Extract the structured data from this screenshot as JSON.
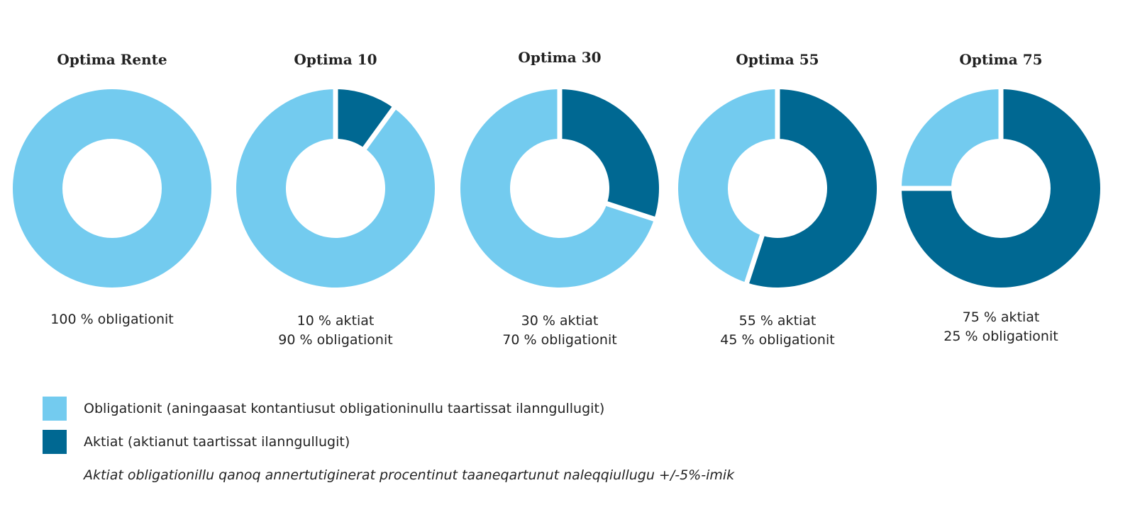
{
  "colors": {
    "obligationit": "#73CBEF",
    "aktiat": "#006892",
    "separator": "#ffffff"
  },
  "chart_data": [
    {
      "type": "pie",
      "title": "Optima Rente",
      "series": [
        {
          "name": "Aktiat",
          "value": 0
        },
        {
          "name": "Obligationit",
          "value": 100
        }
      ],
      "caption": [
        "100 % obligationit"
      ]
    },
    {
      "type": "pie",
      "title": "Optima 10",
      "series": [
        {
          "name": "Aktiat",
          "value": 10
        },
        {
          "name": "Obligationit",
          "value": 90
        }
      ],
      "caption": [
        "10 % aktiat",
        "90 % obligationit"
      ]
    },
    {
      "type": "pie",
      "title": "Optima 30",
      "series": [
        {
          "name": "Aktiat",
          "value": 30
        },
        {
          "name": "Obligationit",
          "value": 70
        }
      ],
      "caption": [
        "30 % aktiat",
        "70 % obligationit"
      ]
    },
    {
      "type": "pie",
      "title": "Optima 55",
      "series": [
        {
          "name": "Aktiat",
          "value": 55
        },
        {
          "name": "Obligationit",
          "value": 45
        }
      ],
      "caption": [
        "55 % aktiat",
        "45 % obligationit"
      ]
    },
    {
      "type": "pie",
      "title": "Optima 75",
      "series": [
        {
          "name": "Aktiat",
          "value": 75
        },
        {
          "name": "Obligationit",
          "value": 25
        }
      ],
      "caption": [
        "75 % aktiat",
        "25 % obligationit"
      ]
    }
  ],
  "legend": {
    "items": [
      {
        "key": "obligationit",
        "label": "Obligationit (aningaasat kontantiusut obligationinullu taartissat ilanngullugit)"
      },
      {
        "key": "aktiat",
        "label": "Aktiat (aktianut taartissat ilanngullugit)"
      }
    ],
    "note": "Aktiat obligationillu qanoq annertutiginerat procentinut taaneqartunut naleqqiullugu +/-5%-imik"
  }
}
